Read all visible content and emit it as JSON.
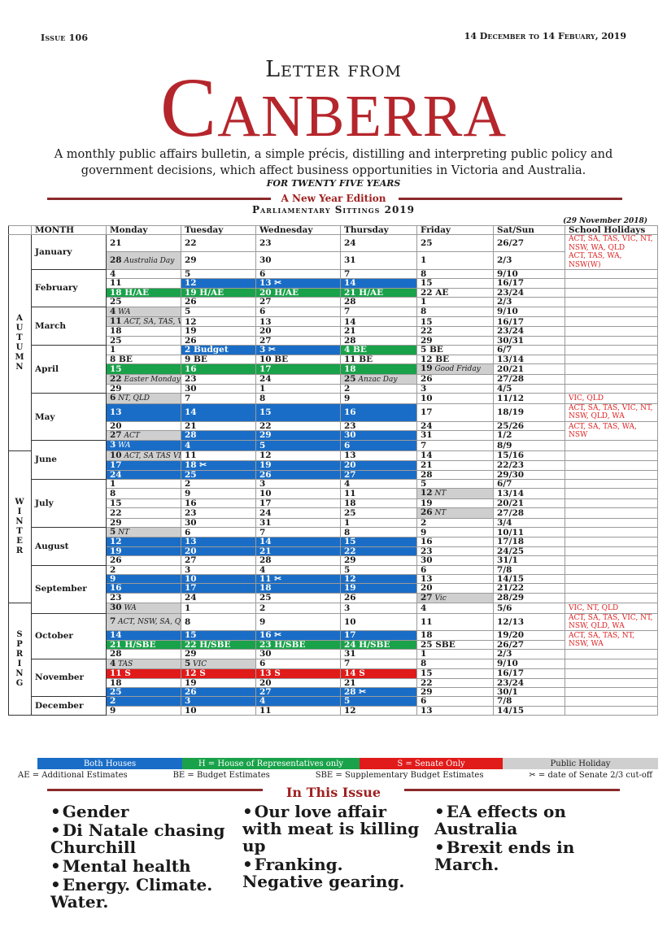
{
  "header": {
    "issue": "Issue 106",
    "dates": "14 December to 14 Febuary, 2019",
    "letter_from": "Letter from",
    "title": "Canberra",
    "tagline": "A monthly public affairs bulletin, a simple précis, distilling and interpreting public policy and government decisions, which affect business opportunities in Victoria and Australia.",
    "twenty_five": "FOR TWENTY FIVE YEARS",
    "new_year": "A New Year Edition",
    "sittings_title": "Parliamentary Sittings 2019",
    "as_of": "(29 November 2018)"
  },
  "table_headers": [
    "MONTH",
    "Monday",
    "Tuesday",
    "Wednesday",
    "Thursday",
    "Friday",
    "Sat/Sun",
    "School Holidays"
  ],
  "seasons": [
    {
      "name": "AUTUMN",
      "rows": 20
    },
    {
      "name": "WINTER",
      "rows": 16
    },
    {
      "name": "SPRING",
      "rows": 23
    }
  ],
  "months": [
    {
      "name": "January",
      "rows": [
        {
          "d": [
            "21",
            "22",
            "23",
            "24",
            "25",
            "26/27"
          ],
          "c": [
            "",
            "",
            "",
            "",
            "",
            ""
          ]
        },
        {
          "d": [
            "28",
            "29",
            "30",
            "31",
            "1",
            "2/3"
          ],
          "n": [
            "Australia Day",
            "",
            "",
            "",
            "",
            ""
          ],
          "c": [
            "grey",
            "",
            "",
            "",
            "",
            ""
          ]
        }
      ]
    },
    {
      "name": "February",
      "rows": [
        {
          "d": [
            "4",
            "5",
            "6",
            "7",
            "8",
            "9/10"
          ],
          "c": [
            "",
            "",
            "",
            "",
            "",
            ""
          ]
        },
        {
          "d": [
            "11",
            "12",
            "13 ✂",
            "14",
            "15",
            "16/17"
          ],
          "c": [
            "",
            "blue",
            "blue",
            "blue",
            "",
            ""
          ]
        },
        {
          "d": [
            "18 H/AE",
            "19 H/AE",
            "20 H/AE",
            "21 H/AE",
            "22 AE",
            "23/24"
          ],
          "c": [
            "green",
            "green",
            "green",
            "green",
            "",
            ""
          ]
        },
        {
          "d": [
            "25",
            "26",
            "27",
            "28",
            "1",
            "2/3"
          ],
          "c": [
            "",
            "",
            "",
            "",
            "",
            ""
          ]
        }
      ]
    },
    {
      "name": "March",
      "rows": [
        {
          "d": [
            "4",
            "5",
            "6",
            "7",
            "8",
            "9/10"
          ],
          "n": [
            "WA",
            "",
            "",
            "",
            "",
            ""
          ],
          "c": [
            "grey",
            "",
            "",
            "",
            "",
            ""
          ]
        },
        {
          "d": [
            "11",
            "12",
            "13",
            "14",
            "15",
            "16/17"
          ],
          "n": [
            "ACT, SA, TAS, VIC",
            "",
            "",
            "",
            "",
            ""
          ],
          "c": [
            "grey",
            "",
            "",
            "",
            "",
            ""
          ]
        },
        {
          "d": [
            "18",
            "19",
            "20",
            "21",
            "22",
            "23/24"
          ],
          "c": [
            "",
            "",
            "",
            "",
            "",
            ""
          ]
        },
        {
          "d": [
            "25",
            "26",
            "27",
            "28",
            "29",
            "30/31"
          ],
          "c": [
            "",
            "",
            "",
            "",
            "",
            ""
          ]
        }
      ]
    },
    {
      "name": "April",
      "rows": [
        {
          "d": [
            "1",
            "2 Budget",
            "3 ✂",
            "4 BE",
            "5 BE",
            "6/7"
          ],
          "c": [
            "",
            "blue",
            "blue",
            "green",
            "",
            ""
          ]
        },
        {
          "d": [
            "8 BE",
            "9 BE",
            "10 BE",
            "11 BE",
            "12 BE",
            "13/14"
          ],
          "c": [
            "",
            "",
            "",
            "",
            "",
            ""
          ]
        },
        {
          "d": [
            "15",
            "16",
            "17",
            "18",
            "19",
            "20/21"
          ],
          "n": [
            "",
            "",
            "",
            "",
            "Good Friday",
            ""
          ],
          "c": [
            "green",
            "green",
            "green",
            "green",
            "grey",
            ""
          ]
        },
        {
          "d": [
            "22",
            "23",
            "24",
            "25",
            "26",
            "27/28"
          ],
          "n": [
            "Easter Monday",
            "",
            "",
            "Anzac Day",
            "",
            ""
          ],
          "c": [
            "grey",
            "",
            "",
            "grey",
            "",
            ""
          ]
        },
        {
          "d": [
            "29",
            "30",
            "1",
            "2",
            "3",
            "4/5"
          ],
          "c": [
            "",
            "",
            "",
            "",
            "",
            ""
          ]
        }
      ]
    },
    {
      "name": "May",
      "rows": [
        {
          "d": [
            "6",
            "7",
            "8",
            "9",
            "10",
            "11/12"
          ],
          "n": [
            "NT, QLD",
            "",
            "",
            "",
            "",
            ""
          ],
          "c": [
            "grey",
            "",
            "",
            "",
            "",
            ""
          ]
        },
        {
          "d": [
            "13",
            "14",
            "15",
            "16",
            "17",
            "18/19"
          ],
          "c": [
            "blue",
            "blue",
            "blue",
            "blue",
            "",
            ""
          ]
        },
        {
          "d": [
            "20",
            "21",
            "22",
            "23",
            "24",
            "25/26"
          ],
          "c": [
            "",
            "",
            "",
            "",
            "",
            ""
          ]
        },
        {
          "d": [
            "27",
            "28",
            "29",
            "30",
            "31",
            "1/2"
          ],
          "n": [
            "ACT",
            "",
            "",
            "",
            "",
            ""
          ],
          "c": [
            "grey",
            "blue",
            "blue",
            "blue",
            "",
            ""
          ]
        }
      ]
    },
    {
      "name": "June",
      "rows": [
        {
          "d": [
            "3",
            "4",
            "5",
            "6",
            "7",
            "8/9"
          ],
          "n": [
            "WA",
            "",
            "",
            "",
            "",
            ""
          ],
          "c": [
            "blue",
            "blue",
            "blue",
            "blue",
            "",
            ""
          ]
        },
        {
          "d": [
            "10",
            "11",
            "12",
            "13",
            "14",
            "15/16"
          ],
          "n": [
            "ACT, SA TAS VIC, NT, NSW",
            "",
            "",
            "",
            "",
            ""
          ],
          "c": [
            "grey",
            "",
            "",
            "",
            "",
            ""
          ]
        },
        {
          "d": [
            "17",
            "18 ✂",
            "19",
            "20",
            "21",
            "22/23"
          ],
          "c": [
            "blue",
            "blue",
            "blue",
            "blue",
            "",
            ""
          ]
        },
        {
          "d": [
            "24",
            "25",
            "26",
            "27",
            "28",
            "29/30"
          ],
          "c": [
            "blue",
            "blue",
            "blue",
            "blue",
            "",
            ""
          ]
        }
      ]
    },
    {
      "name": "July",
      "rows": [
        {
          "d": [
            "1",
            "2",
            "3",
            "4",
            "5",
            "6/7"
          ],
          "c": [
            "",
            "",
            "",
            "",
            "",
            ""
          ]
        },
        {
          "d": [
            "8",
            "9",
            "10",
            "11",
            "12",
            "13/14"
          ],
          "n": [
            "",
            "",
            "",
            "",
            "NT",
            ""
          ],
          "c": [
            "",
            "",
            "",
            "",
            "grey",
            ""
          ]
        },
        {
          "d": [
            "15",
            "16",
            "17",
            "18",
            "19",
            "20/21"
          ],
          "c": [
            "",
            "",
            "",
            "",
            "",
            ""
          ]
        },
        {
          "d": [
            "22",
            "23",
            "24",
            "25",
            "26",
            "27/28"
          ],
          "n": [
            "",
            "",
            "",
            "",
            "NT",
            ""
          ],
          "c": [
            "",
            "",
            "",
            "",
            "grey",
            ""
          ]
        },
        {
          "d": [
            "29",
            "30",
            "31",
            "1",
            "2",
            "3/4"
          ],
          "c": [
            "",
            "",
            "",
            "",
            "",
            ""
          ]
        }
      ]
    },
    {
      "name": "August",
      "rows": [
        {
          "d": [
            "5",
            "6",
            "7",
            "8",
            "9",
            "10/11"
          ],
          "n": [
            "NT",
            "",
            "",
            "",
            "",
            ""
          ],
          "c": [
            "grey",
            "",
            "",
            "",
            "",
            ""
          ]
        },
        {
          "d": [
            "12",
            "13",
            "14",
            "15",
            "16",
            "17/18"
          ],
          "c": [
            "blue",
            "blue",
            "blue",
            "blue",
            "",
            ""
          ]
        },
        {
          "d": [
            "19",
            "20",
            "21",
            "22",
            "23",
            "24/25"
          ],
          "c": [
            "blue",
            "blue",
            "blue",
            "blue",
            "",
            ""
          ]
        },
        {
          "d": [
            "26",
            "27",
            "28",
            "29",
            "30",
            "31/1"
          ],
          "c": [
            "",
            "",
            "",
            "",
            "",
            ""
          ]
        }
      ]
    },
    {
      "name": "September",
      "rows": [
        {
          "d": [
            "2",
            "3",
            "4",
            "5",
            "6",
            "7/8"
          ],
          "c": [
            "",
            "",
            "",
            "",
            "",
            ""
          ]
        },
        {
          "d": [
            "9",
            "10",
            "11 ✂",
            "12",
            "13",
            "14/15"
          ],
          "c": [
            "blue",
            "blue",
            "blue",
            "blue",
            "",
            ""
          ]
        },
        {
          "d": [
            "16",
            "17",
            "18",
            "19",
            "20",
            "21/22"
          ],
          "c": [
            "blue",
            "blue",
            "blue",
            "blue",
            "",
            ""
          ]
        },
        {
          "d": [
            "23",
            "24",
            "25",
            "26",
            "27",
            "28/29"
          ],
          "n": [
            "",
            "",
            "",
            "",
            "Vic",
            ""
          ],
          "c": [
            "",
            "",
            "",
            "",
            "grey",
            ""
          ]
        },
        {
          "d": [
            "30",
            "1",
            "2",
            "3",
            "4",
            "5/6"
          ],
          "n": [
            "WA",
            "",
            "",
            "",
            "",
            ""
          ],
          "c": [
            "grey",
            "",
            "",
            "",
            "",
            ""
          ]
        }
      ]
    },
    {
      "name": "October",
      "rows": [
        {
          "d": [
            "7",
            "8",
            "9",
            "10",
            "11",
            "12/13"
          ],
          "n": [
            "ACT, NSW, SA, QLD",
            "",
            "",
            "",
            "",
            ""
          ],
          "c": [
            "grey",
            "",
            "",
            "",
            "",
            ""
          ]
        },
        {
          "d": [
            "14",
            "15",
            "16 ✂",
            "17",
            "18",
            "19/20"
          ],
          "c": [
            "blue",
            "blue",
            "blue",
            "blue",
            "",
            ""
          ]
        },
        {
          "d": [
            "21 H/SBE",
            "22 H/SBE",
            "23 H/SBE",
            "24 H/SBE",
            "25 SBE",
            "26/27"
          ],
          "c": [
            "green",
            "green",
            "green",
            "green",
            "",
            ""
          ]
        },
        {
          "d": [
            "28",
            "29",
            "30",
            "31",
            "1",
            "2/3"
          ],
          "c": [
            "",
            "",
            "",
            "",
            "",
            ""
          ]
        }
      ]
    },
    {
      "name": "November",
      "rows": [
        {
          "d": [
            "4",
            "5",
            "6",
            "7",
            "8",
            "9/10"
          ],
          "n": [
            "TAS",
            "VIC",
            "",
            "",
            "",
            ""
          ],
          "c": [
            "grey",
            "grey",
            "",
            "",
            "",
            ""
          ]
        },
        {
          "d": [
            "11 S",
            "12 S",
            "13 S",
            "14 S",
            "15",
            "16/17"
          ],
          "c": [
            "red",
            "red",
            "red",
            "red",
            "",
            ""
          ]
        },
        {
          "d": [
            "18",
            "19",
            "20",
            "21",
            "22",
            "23/24"
          ],
          "c": [
            "",
            "",
            "",
            "",
            "",
            ""
          ]
        },
        {
          "d": [
            "25",
            "26",
            "27",
            "28 ✂",
            "29",
            "30/1"
          ],
          "c": [
            "blue",
            "blue",
            "blue",
            "blue",
            "",
            ""
          ]
        }
      ]
    },
    {
      "name": "December",
      "rows": [
        {
          "d": [
            "2",
            "3",
            "4",
            "5",
            "6",
            "7/8"
          ],
          "c": [
            "blue",
            "blue",
            "blue",
            "blue",
            "",
            ""
          ]
        },
        {
          "d": [
            "9",
            "10",
            "11",
            "12",
            "13",
            "14/15"
          ],
          "c": [
            "",
            "",
            "",
            "",
            "",
            ""
          ]
        }
      ]
    }
  ],
  "school_holidays": [
    {
      "row": 0,
      "span": 2,
      "text": "ACT, SA, TAS, VIC, NT, NSW, WA, QLD\nACT, TAS, WA, NSW(W)"
    },
    {
      "row": 15,
      "span": 1,
      "text": "VIC, QLD"
    },
    {
      "row": 16,
      "span": 1,
      "text": "ACT, SA, TAS, VIC, NT, NSW, QLD, WA"
    },
    {
      "row": 17,
      "span": 2,
      "text": "ACT, SA, TAS, WA, NSW"
    },
    {
      "row": 36,
      "span": 1,
      "text": "VIC, NT, QLD"
    },
    {
      "row": 37,
      "span": 1,
      "text": "ACT, SA, TAS, VIC, NT, NSW, QLD, WA"
    },
    {
      "row": 38,
      "span": 2,
      "text": "ACT, SA, TAS, NT, NSW, WA"
    },
    {
      "row": 48,
      "span": 1,
      "text": "VIC, QLD"
    },
    {
      "row": 49,
      "span": 1,
      "text": "ACT, SA, TAS, VIC, NT, NSW, QLD, WA"
    },
    {
      "row": 50,
      "span": 2,
      "text": "ACT, SA, TAS, NT, NSW, WA"
    }
  ],
  "legend": {
    "both": "Both Houses",
    "house": "H = House of Representatives only",
    "senate": "S = Senate Only",
    "public": "Public Holiday",
    "colors": {
      "both": "#1a6dc6",
      "house": "#19a24a",
      "senate": "#e11a1a",
      "public": "#cfcfcf"
    }
  },
  "abbrev": {
    "ae": "AE = Additional Estimates",
    "be": "BE = Budget Estimates",
    "sbe": "SBE = Supplementary Budget Estimates",
    "cutoff": "✂ = date of Senate 2/3 cut-off"
  },
  "in_this_issue": {
    "title": "In This Issue",
    "col1": [
      "Gender",
      "Di Natale chasing Churchill",
      "Mental health",
      "Energy. Climate. Water."
    ],
    "col2": [
      "Our love affair with meat is killing up",
      "Franking. Negative gearing."
    ],
    "col3": [
      "EA effects on Australia",
      "Brexit ends in March."
    ]
  }
}
